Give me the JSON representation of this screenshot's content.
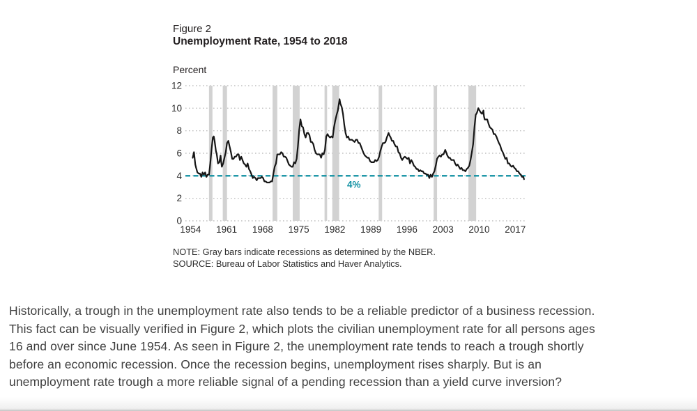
{
  "figure": {
    "label": "Figure 2",
    "title": "Unemployment Rate, 1954 to 2018",
    "y_axis_unit": "Percent",
    "note": "NOTE: Gray bars indicate recessions as determined by the NBER.",
    "source": "SOURCE: Bureau of Labor Statistics and Haver Analytics."
  },
  "paragraph": {
    "lines": [
      "Historically, a trough in the unemployment rate also tends to be a reliable predictor of a business recession.",
      "This fact can be visually verified in Figure 2, which plots the civilian unemployment rate for all persons ages",
      "16 and over since June 1954. As seen in Figure 2, the unemployment rate tends to reach a trough shortly",
      "before an economic recession. Once the recession begins, unemployment rises sharply. But is an",
      "unemployment rate trough a more reliable signal of a pending recession than a yield curve inversion?"
    ]
  },
  "chart_data": {
    "type": "line",
    "title": "Unemployment Rate, 1954 to 2018",
    "xlabel": "",
    "ylabel": "Percent",
    "ylim": [
      0,
      12
    ],
    "y_ticks": [
      0,
      2,
      4,
      6,
      8,
      10,
      12
    ],
    "x_ticks": [
      1954,
      1961,
      1968,
      1975,
      1982,
      1989,
      1996,
      2003,
      2010,
      2017
    ],
    "x_domain": [
      1953,
      2019
    ],
    "grid": "dotted horizontal gridlines at each y tick, no axis lines",
    "legend": "none",
    "reference_line": {
      "value": 4,
      "style": "dashed",
      "color": "#1191a3"
    },
    "annotation": {
      "text": "4%",
      "x_year": 1985.7,
      "value": 4,
      "color": "#1191a3"
    },
    "recessions_note": "gray vertical bars = NBER recessions",
    "recessions": [
      [
        1957.58,
        1958.25
      ],
      [
        1960.25,
        1961.08
      ],
      [
        1969.92,
        1970.83
      ],
      [
        1973.83,
        1975.17
      ],
      [
        1980.0,
        1980.5
      ],
      [
        1981.5,
        1982.83
      ],
      [
        1990.5,
        1991.17
      ],
      [
        2001.17,
        2001.83
      ],
      [
        2007.92,
        2009.42
      ]
    ],
    "colors": {
      "line": "#161616",
      "recession_bar": "#d2d2d2",
      "grid": "#c0c0c0",
      "reference": "#1191a3",
      "tick_text": "#2b2b2b"
    },
    "series": [
      {
        "name": "Civilian unemployment rate, persons ages 16 and over (percent)",
        "points": [
          [
            1954.42,
            5.6
          ],
          [
            1954.67,
            6.1
          ],
          [
            1954.92,
            5.0
          ],
          [
            1955.08,
            4.7
          ],
          [
            1955.33,
            4.3
          ],
          [
            1955.58,
            4.2
          ],
          [
            1955.83,
            4.2
          ],
          [
            1956.08,
            3.9
          ],
          [
            1956.33,
            4.3
          ],
          [
            1956.58,
            4.1
          ],
          [
            1956.83,
            4.3
          ],
          [
            1957.08,
            3.9
          ],
          [
            1957.33,
            4.1
          ],
          [
            1957.58,
            4.1
          ],
          [
            1957.83,
            5.1
          ],
          [
            1958.08,
            6.4
          ],
          [
            1958.33,
            7.4
          ],
          [
            1958.5,
            7.5
          ],
          [
            1958.67,
            7.1
          ],
          [
            1958.92,
            6.2
          ],
          [
            1959.08,
            5.9
          ],
          [
            1959.33,
            5.1
          ],
          [
            1959.58,
            5.2
          ],
          [
            1959.83,
            5.8
          ],
          [
            1959.92,
            5.3
          ],
          [
            1960.08,
            4.8
          ],
          [
            1960.33,
            5.1
          ],
          [
            1960.58,
            5.6
          ],
          [
            1960.83,
            6.1
          ],
          [
            1961.08,
            6.9
          ],
          [
            1961.33,
            7.1
          ],
          [
            1961.58,
            6.6
          ],
          [
            1961.83,
            6.1
          ],
          [
            1962.08,
            5.5
          ],
          [
            1962.33,
            5.5
          ],
          [
            1962.58,
            5.7
          ],
          [
            1962.83,
            5.7
          ],
          [
            1963.08,
            5.9
          ],
          [
            1963.33,
            5.9
          ],
          [
            1963.58,
            5.4
          ],
          [
            1963.83,
            5.7
          ],
          [
            1964.08,
            5.4
          ],
          [
            1964.33,
            5.1
          ],
          [
            1964.58,
            5.0
          ],
          [
            1964.83,
            4.8
          ],
          [
            1965.08,
            5.1
          ],
          [
            1965.33,
            4.6
          ],
          [
            1965.58,
            4.4
          ],
          [
            1965.83,
            4.1
          ],
          [
            1966.08,
            3.8
          ],
          [
            1966.33,
            3.9
          ],
          [
            1966.58,
            3.8
          ],
          [
            1966.83,
            3.6
          ],
          [
            1967.08,
            3.8
          ],
          [
            1967.33,
            3.8
          ],
          [
            1967.58,
            3.8
          ],
          [
            1967.83,
            3.9
          ],
          [
            1968.08,
            3.8
          ],
          [
            1968.33,
            3.5
          ],
          [
            1968.58,
            3.5
          ],
          [
            1968.83,
            3.4
          ],
          [
            1969.08,
            3.4
          ],
          [
            1969.33,
            3.4
          ],
          [
            1969.58,
            3.5
          ],
          [
            1969.83,
            3.5
          ],
          [
            1970.08,
            4.2
          ],
          [
            1970.33,
            4.8
          ],
          [
            1970.58,
            5.1
          ],
          [
            1970.83,
            5.9
          ],
          [
            1971.08,
            5.9
          ],
          [
            1971.33,
            5.9
          ],
          [
            1971.58,
            6.1
          ],
          [
            1971.83,
            6.0
          ],
          [
            1972.08,
            5.7
          ],
          [
            1972.33,
            5.7
          ],
          [
            1972.58,
            5.6
          ],
          [
            1972.83,
            5.3
          ],
          [
            1973.08,
            5.0
          ],
          [
            1973.33,
            4.9
          ],
          [
            1973.58,
            4.8
          ],
          [
            1973.83,
            4.8
          ],
          [
            1974.08,
            5.2
          ],
          [
            1974.33,
            5.1
          ],
          [
            1974.58,
            5.5
          ],
          [
            1974.83,
            6.6
          ],
          [
            1975.08,
            8.1
          ],
          [
            1975.33,
            9.0
          ],
          [
            1975.58,
            8.4
          ],
          [
            1975.83,
            8.3
          ],
          [
            1976.08,
            7.7
          ],
          [
            1976.33,
            7.4
          ],
          [
            1976.58,
            7.8
          ],
          [
            1976.83,
            7.8
          ],
          [
            1977.08,
            7.6
          ],
          [
            1977.33,
            7.0
          ],
          [
            1977.58,
            7.0
          ],
          [
            1977.83,
            6.8
          ],
          [
            1978.08,
            6.3
          ],
          [
            1978.33,
            6.0
          ],
          [
            1978.58,
            5.9
          ],
          [
            1978.83,
            5.9
          ],
          [
            1979.08,
            5.9
          ],
          [
            1979.33,
            5.6
          ],
          [
            1979.58,
            6.0
          ],
          [
            1979.83,
            5.9
          ],
          [
            1980.08,
            6.3
          ],
          [
            1980.33,
            7.5
          ],
          [
            1980.58,
            7.7
          ],
          [
            1980.83,
            7.5
          ],
          [
            1981.08,
            7.4
          ],
          [
            1981.33,
            7.5
          ],
          [
            1981.58,
            7.4
          ],
          [
            1981.83,
            8.3
          ],
          [
            1982.08,
            8.9
          ],
          [
            1982.33,
            9.4
          ],
          [
            1982.58,
            9.8
          ],
          [
            1982.92,
            10.8
          ],
          [
            1983.08,
            10.4
          ],
          [
            1983.33,
            10.1
          ],
          [
            1983.58,
            9.5
          ],
          [
            1983.83,
            8.5
          ],
          [
            1984.08,
            7.8
          ],
          [
            1984.33,
            7.4
          ],
          [
            1984.58,
            7.5
          ],
          [
            1984.83,
            7.2
          ],
          [
            1985.08,
            7.2
          ],
          [
            1985.33,
            7.2
          ],
          [
            1985.58,
            7.1
          ],
          [
            1985.83,
            7.0
          ],
          [
            1986.08,
            7.2
          ],
          [
            1986.33,
            7.2
          ],
          [
            1986.58,
            6.9
          ],
          [
            1986.83,
            6.9
          ],
          [
            1987.08,
            6.6
          ],
          [
            1987.33,
            6.3
          ],
          [
            1987.58,
            6.0
          ],
          [
            1987.83,
            5.8
          ],
          [
            1988.08,
            5.7
          ],
          [
            1988.33,
            5.6
          ],
          [
            1988.58,
            5.6
          ],
          [
            1988.83,
            5.3
          ],
          [
            1989.08,
            5.2
          ],
          [
            1989.33,
            5.2
          ],
          [
            1989.58,
            5.2
          ],
          [
            1989.83,
            5.4
          ],
          [
            1990.08,
            5.3
          ],
          [
            1990.33,
            5.4
          ],
          [
            1990.58,
            5.7
          ],
          [
            1990.83,
            6.2
          ],
          [
            1991.08,
            6.6
          ],
          [
            1991.33,
            6.9
          ],
          [
            1991.58,
            6.9
          ],
          [
            1991.83,
            7.0
          ],
          [
            1992.08,
            7.4
          ],
          [
            1992.42,
            7.8
          ],
          [
            1992.58,
            7.6
          ],
          [
            1992.83,
            7.4
          ],
          [
            1993.08,
            7.1
          ],
          [
            1993.33,
            7.1
          ],
          [
            1993.58,
            6.8
          ],
          [
            1993.83,
            6.6
          ],
          [
            1994.08,
            6.6
          ],
          [
            1994.33,
            6.1
          ],
          [
            1994.58,
            6.0
          ],
          [
            1994.83,
            5.6
          ],
          [
            1995.08,
            5.4
          ],
          [
            1995.33,
            5.6
          ],
          [
            1995.58,
            5.7
          ],
          [
            1995.83,
            5.6
          ],
          [
            1996.08,
            5.5
          ],
          [
            1996.33,
            5.6
          ],
          [
            1996.58,
            5.1
          ],
          [
            1996.83,
            5.4
          ],
          [
            1997.08,
            5.2
          ],
          [
            1997.33,
            4.9
          ],
          [
            1997.58,
            4.8
          ],
          [
            1997.83,
            4.6
          ],
          [
            1998.08,
            4.6
          ],
          [
            1998.33,
            4.4
          ],
          [
            1998.58,
            4.5
          ],
          [
            1998.83,
            4.4
          ],
          [
            1999.08,
            4.4
          ],
          [
            1999.33,
            4.2
          ],
          [
            1999.58,
            4.2
          ],
          [
            1999.83,
            4.1
          ],
          [
            2000.08,
            4.1
          ],
          [
            2000.33,
            3.8
          ],
          [
            2000.58,
            4.1
          ],
          [
            2000.83,
            3.9
          ],
          [
            2001.08,
            4.2
          ],
          [
            2001.33,
            4.4
          ],
          [
            2001.58,
            4.9
          ],
          [
            2001.83,
            5.5
          ],
          [
            2002.08,
            5.7
          ],
          [
            2002.33,
            5.8
          ],
          [
            2002.58,
            5.7
          ],
          [
            2002.83,
            5.9
          ],
          [
            2003.08,
            5.9
          ],
          [
            2003.42,
            6.3
          ],
          [
            2003.58,
            6.1
          ],
          [
            2003.83,
            5.8
          ],
          [
            2004.08,
            5.6
          ],
          [
            2004.33,
            5.6
          ],
          [
            2004.58,
            5.4
          ],
          [
            2004.83,
            5.4
          ],
          [
            2005.08,
            5.4
          ],
          [
            2005.33,
            5.1
          ],
          [
            2005.58,
            4.9
          ],
          [
            2005.83,
            5.0
          ],
          [
            2006.08,
            4.8
          ],
          [
            2006.33,
            4.6
          ],
          [
            2006.58,
            4.7
          ],
          [
            2006.83,
            4.5
          ],
          [
            2007.08,
            4.5
          ],
          [
            2007.33,
            4.4
          ],
          [
            2007.58,
            4.6
          ],
          [
            2007.83,
            4.7
          ],
          [
            2008.08,
            4.9
          ],
          [
            2008.33,
            5.4
          ],
          [
            2008.58,
            6.1
          ],
          [
            2008.83,
            6.8
          ],
          [
            2009.08,
            8.3
          ],
          [
            2009.33,
            9.4
          ],
          [
            2009.58,
            9.6
          ],
          [
            2009.83,
            10.0
          ],
          [
            2010.08,
            9.8
          ],
          [
            2010.33,
            9.6
          ],
          [
            2010.58,
            9.5
          ],
          [
            2010.83,
            9.8
          ],
          [
            2010.92,
            9.3
          ],
          [
            2011.08,
            9.0
          ],
          [
            2011.33,
            9.0
          ],
          [
            2011.58,
            9.0
          ],
          [
            2011.83,
            8.6
          ],
          [
            2012.08,
            8.3
          ],
          [
            2012.33,
            8.2
          ],
          [
            2012.58,
            8.1
          ],
          [
            2012.83,
            7.7
          ],
          [
            2013.08,
            7.7
          ],
          [
            2013.33,
            7.5
          ],
          [
            2013.58,
            7.2
          ],
          [
            2013.83,
            6.9
          ],
          [
            2014.08,
            6.7
          ],
          [
            2014.33,
            6.3
          ],
          [
            2014.58,
            6.1
          ],
          [
            2014.83,
            5.8
          ],
          [
            2015.08,
            5.5
          ],
          [
            2015.33,
            5.6
          ],
          [
            2015.58,
            5.1
          ],
          [
            2015.83,
            5.1
          ],
          [
            2016.08,
            4.9
          ],
          [
            2016.33,
            4.8
          ],
          [
            2016.58,
            4.9
          ],
          [
            2016.83,
            4.7
          ],
          [
            2017.08,
            4.6
          ],
          [
            2017.33,
            4.4
          ],
          [
            2017.58,
            4.4
          ],
          [
            2017.83,
            4.2
          ],
          [
            2018.08,
            4.1
          ],
          [
            2018.33,
            3.9
          ],
          [
            2018.58,
            3.9
          ],
          [
            2018.7,
            3.7
          ]
        ]
      }
    ]
  }
}
